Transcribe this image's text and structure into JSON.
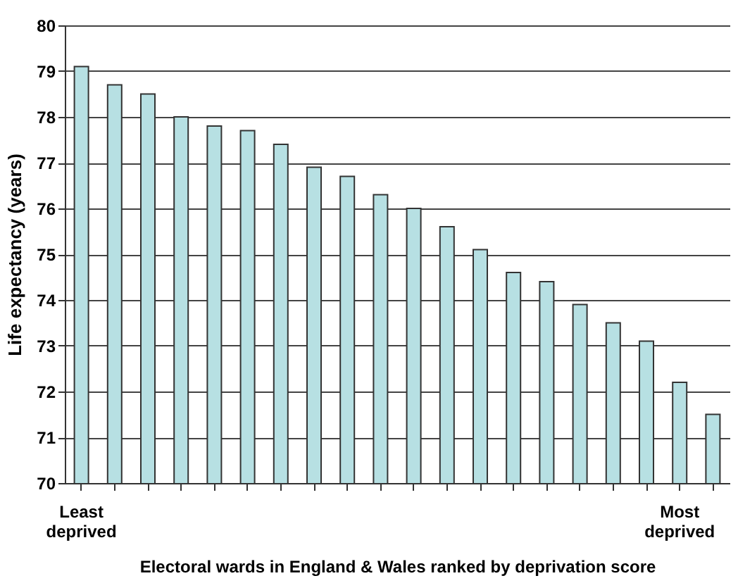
{
  "chart_data": {
    "type": "bar",
    "xlabel": "Electoral wards in England & Wales ranked by deprivation score",
    "ylabel": "Life expectancy (years)",
    "categories": [
      "Least deprived",
      null,
      null,
      null,
      null,
      null,
      null,
      null,
      null,
      null,
      null,
      null,
      null,
      null,
      null,
      null,
      null,
      null,
      "Most deprived",
      null
    ],
    "values": [
      79.1,
      78.7,
      78.5,
      78.0,
      77.8,
      77.7,
      77.4,
      76.9,
      76.7,
      76.3,
      76.0,
      75.6,
      75.1,
      74.6,
      74.4,
      73.9,
      73.5,
      73.1,
      72.2,
      71.5
    ],
    "color": "#b7e0e3",
    "ylim": [
      70,
      80
    ],
    "yticks": [
      70,
      71,
      72,
      73,
      74,
      75,
      76,
      77,
      78,
      79,
      80
    ],
    "grid": true
  }
}
